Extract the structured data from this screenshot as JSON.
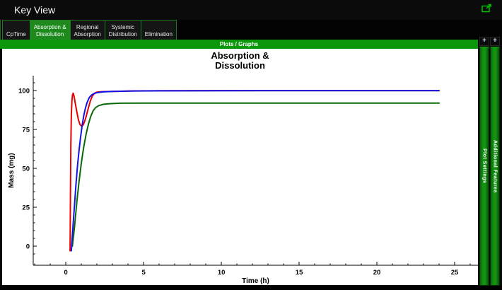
{
  "window": {
    "title": "Key View"
  },
  "icons": {
    "popout": "open-in-new-window"
  },
  "tabs": [
    {
      "label": "CpTime",
      "selected": false
    },
    {
      "label": "Absorption &\nDissolution",
      "selected": true
    },
    {
      "label": "Regional\nAbsorption",
      "selected": false
    },
    {
      "label": "Systemic\nDistribution",
      "selected": false
    },
    {
      "label": "Elimination",
      "selected": false
    }
  ],
  "plots_bar": {
    "label": "Plots / Graphs"
  },
  "side_panels": [
    {
      "label": "Plot Settings",
      "button": "+"
    },
    {
      "label": "Additional Features",
      "button": "+"
    }
  ],
  "colors": {
    "accent_green": "#0a970a",
    "selected_tab_green": "#1e8a1e",
    "side_bar_green": "#129112",
    "popout_icon_green": "#00c800",
    "series_red": "#e80000",
    "series_blue": "#1212e8",
    "series_green": "#096909"
  },
  "chart_data": {
    "type": "line",
    "title": "Absorption & Dissolution",
    "title_lines": [
      "Absorption &",
      "Dissolution"
    ],
    "xlabel": "Time (h)",
    "ylabel": "Mass (mg)",
    "xlim": [
      -2.1,
      26.5
    ],
    "ylim": [
      -12.3,
      109.6
    ],
    "x_ticks": [
      0,
      5,
      10,
      15,
      20,
      25
    ],
    "y_ticks": [
      0,
      25,
      50,
      75,
      100
    ],
    "x_minor_step": 1,
    "y_minor_step": 5,
    "grid": false,
    "legend": "none",
    "series": [
      {
        "name": "red-curve",
        "color": "#e80000",
        "points": [
          [
            0.27,
            -3
          ],
          [
            0.29,
            30
          ],
          [
            0.32,
            65
          ],
          [
            0.35,
            85
          ],
          [
            0.39,
            94
          ],
          [
            0.43,
            97.3
          ],
          [
            0.47,
            98.3
          ],
          [
            0.53,
            96.3
          ],
          [
            0.6,
            92
          ],
          [
            0.7,
            86.5
          ],
          [
            0.8,
            81.5
          ],
          [
            0.9,
            78.3
          ],
          [
            1.0,
            77.2
          ],
          [
            1.1,
            77.8
          ],
          [
            1.2,
            80
          ],
          [
            1.32,
            84
          ],
          [
            1.45,
            89
          ],
          [
            1.58,
            93.5
          ],
          [
            1.7,
            96.5
          ],
          [
            1.85,
            98.4
          ],
          [
            2.0,
            99
          ],
          [
            2.3,
            99.3
          ],
          [
            3.0,
            99.5
          ],
          [
            4.5,
            99.8
          ],
          [
            7.0,
            99.9
          ],
          [
            10,
            100
          ],
          [
            24,
            100
          ]
        ]
      },
      {
        "name": "green-curve",
        "color": "#096909",
        "points": [
          [
            0.42,
            0
          ],
          [
            0.55,
            12
          ],
          [
            0.7,
            28
          ],
          [
            0.85,
            42
          ],
          [
            1.0,
            54
          ],
          [
            1.15,
            64
          ],
          [
            1.3,
            72
          ],
          [
            1.45,
            78.5
          ],
          [
            1.6,
            83.5
          ],
          [
            1.75,
            87
          ],
          [
            1.9,
            89
          ],
          [
            2.1,
            90.3
          ],
          [
            2.4,
            91.2
          ],
          [
            2.8,
            91.6
          ],
          [
            3.5,
            91.9
          ],
          [
            5.0,
            92
          ],
          [
            24,
            92
          ]
        ]
      },
      {
        "name": "blue-curve",
        "color": "#1212e8",
        "points": [
          [
            0.35,
            -3
          ],
          [
            0.45,
            12
          ],
          [
            0.55,
            26
          ],
          [
            0.65,
            40
          ],
          [
            0.75,
            52
          ],
          [
            0.85,
            62
          ],
          [
            0.95,
            70.5
          ],
          [
            1.05,
            78
          ],
          [
            1.15,
            84
          ],
          [
            1.25,
            88.5
          ],
          [
            1.35,
            92
          ],
          [
            1.5,
            95.5
          ],
          [
            1.65,
            97.2
          ],
          [
            1.8,
            98.1
          ],
          [
            2.0,
            98.7
          ],
          [
            2.4,
            99.2
          ],
          [
            3.0,
            99.5
          ],
          [
            4.0,
            99.7
          ],
          [
            6.0,
            99.85
          ],
          [
            10,
            99.95
          ],
          [
            24,
            100
          ]
        ]
      }
    ]
  }
}
